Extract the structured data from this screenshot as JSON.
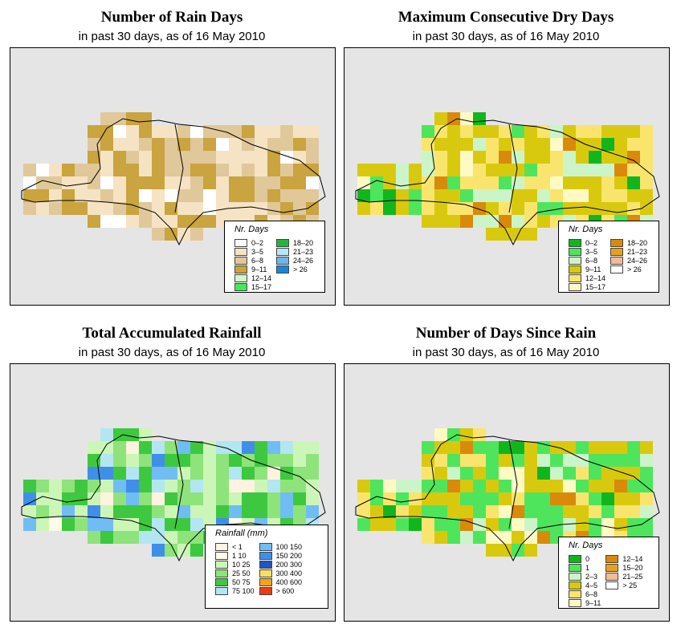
{
  "panels": [
    {
      "id": "rain-days",
      "title": "Number of Rain Days",
      "subtitle": "in past 30 days, as of  16 May 2010",
      "legend_title": "Nr. Days",
      "legend": [
        {
          "label": "0–2",
          "color": "#ffffff"
        },
        {
          "label": "3–5",
          "color": "#f5e3c4"
        },
        {
          "label": "6–8",
          "color": "#e0c89a"
        },
        {
          "label": "9–11",
          "color": "#c9a43f"
        },
        {
          "label": "12–14",
          "color": "#d2f7c8"
        },
        {
          "label": "15–17",
          "color": "#44e85a"
        },
        {
          "label": "18–20",
          "color": "#21b83a"
        },
        {
          "label": "21–23",
          "color": "#b5e6f4"
        },
        {
          "label": "24–26",
          "color": "#67b8f0"
        },
        {
          "label": "> 26",
          "color": "#1a86d8"
        }
      ]
    },
    {
      "id": "dry-days",
      "title": "Maximum Consecutive Dry Days",
      "subtitle": "in past 30 days, as of  16 May 2010",
      "legend_title": "Nr. Days",
      "legend": [
        {
          "label": "0–2",
          "color": "#11b61f"
        },
        {
          "label": "3–5",
          "color": "#4ee55c"
        },
        {
          "label": "6–8",
          "color": "#cbf5c8"
        },
        {
          "label": "9–11",
          "color": "#d9c90e"
        },
        {
          "label": "12–14",
          "color": "#f9e56d"
        },
        {
          "label": "15–17",
          "color": "#fffac4"
        },
        {
          "label": "18–20",
          "color": "#d98a0a"
        },
        {
          "label": "21–23",
          "color": "#e6a21e"
        },
        {
          "label": "24–26",
          "color": "#f7b995"
        },
        {
          "label": "> 26",
          "color": "#ffffff"
        }
      ]
    },
    {
      "id": "rainfall",
      "title": "Total Accumulated Rainfall",
      "subtitle": "in past 30 days, as of  16 May 2010",
      "legend_title": "Rainfall (mm)",
      "legend": [
        {
          "label": "< 1",
          "color": "#fdf3de"
        },
        {
          "label": "1   10",
          "color": "#fffbe8"
        },
        {
          "label": "10   25",
          "color": "#ccf6b7"
        },
        {
          "label": "25   50",
          "color": "#8ee37a"
        },
        {
          "label": "50   75",
          "color": "#3ec83f"
        },
        {
          "label": "75   100",
          "color": "#b2e6f1"
        },
        {
          "label": "100   150",
          "color": "#6fbdf2"
        },
        {
          "label": "150   200",
          "color": "#3f8fe9"
        },
        {
          "label": "200   300",
          "color": "#1e55c8"
        },
        {
          "label": "300   400",
          "color": "#f7e061"
        },
        {
          "label": "400   600",
          "color": "#f6a21a"
        },
        {
          "label": "> 600",
          "color": "#ee3b12"
        }
      ]
    },
    {
      "id": "since-rain",
      "title": "Number of Days Since Rain",
      "subtitle": "in past 30 days, as of  16 May 2010",
      "legend_title": "Nr. Days",
      "legend": [
        {
          "label": "0",
          "color": "#11b61f"
        },
        {
          "label": "1",
          "color": "#4ee55c"
        },
        {
          "label": "2–3",
          "color": "#cbf5c8"
        },
        {
          "label": "4–5",
          "color": "#d9c90e"
        },
        {
          "label": "6–8",
          "color": "#f9e56d"
        },
        {
          "label": "9–11",
          "color": "#fffac4"
        },
        {
          "label": "12–14",
          "color": "#d98a0a"
        },
        {
          "label": "15–20",
          "color": "#e6a21e"
        },
        {
          "label": "21–25",
          "color": "#f7b995"
        },
        {
          "label": "> 25",
          "color": "#ffffff"
        }
      ]
    }
  ]
}
